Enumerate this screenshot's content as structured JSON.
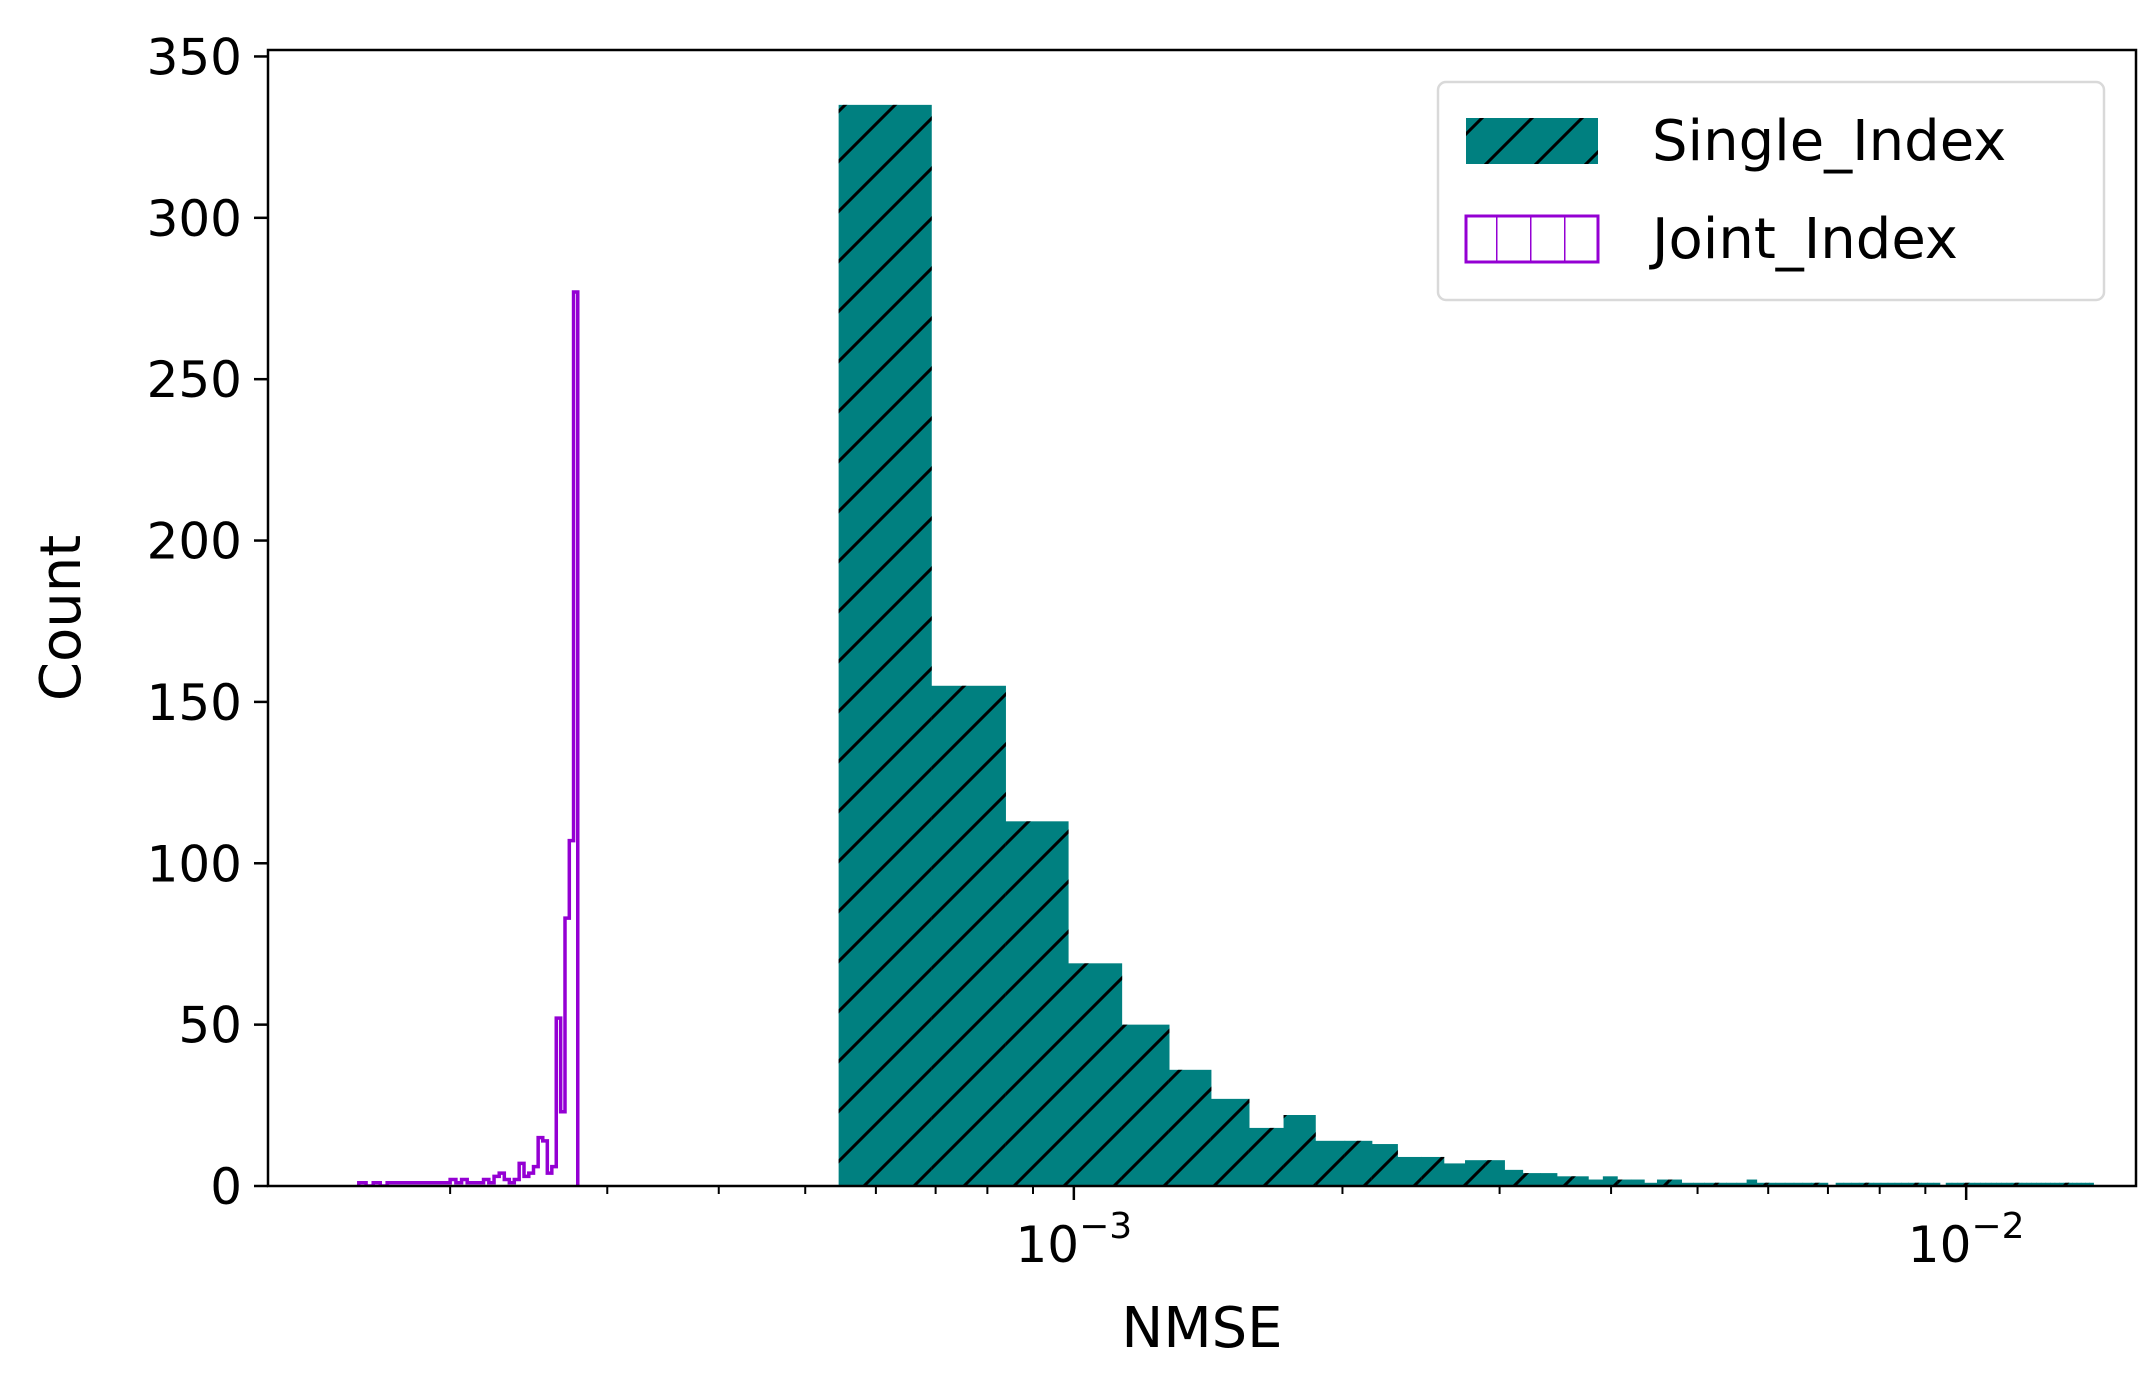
{
  "chart_data": {
    "type": "histogram",
    "xlabel": "NMSE",
    "ylabel": "Count",
    "xscale": "log",
    "xlim": [
      0.000125,
      0.0155
    ],
    "ylim": [
      0,
      352
    ],
    "yticks": [
      0,
      50,
      100,
      150,
      200,
      250,
      300,
      350
    ],
    "xticks": [
      {
        "value": 0.001,
        "base": "10",
        "exp": "−3"
      },
      {
        "value": 0.01,
        "base": "10",
        "exp": "−2"
      }
    ],
    "legend_position": "top-right",
    "series": [
      {
        "name": "Single_Index",
        "style": "filled-hatched",
        "color": "#008080",
        "hatch": "/",
        "bin_edges": [
          0.000545,
          0.000692,
          0.000838,
          0.000985,
          0.001131,
          0.001278,
          0.001424,
          0.001571,
          0.001718,
          0.001864,
          0.002011,
          0.002157,
          0.002304,
          0.002451,
          0.002597,
          0.002744,
          0.00289,
          0.003037,
          0.003183,
          0.00333,
          0.003477,
          0.003623,
          0.00377,
          0.003916,
          0.004063,
          0.00421,
          0.004356,
          0.004503,
          0.004649,
          0.004796,
          0.004942,
          0.005089,
          0.005236,
          0.005382,
          0.005529,
          0.005675,
          0.005822,
          0.005969,
          0.006115,
          0.006262,
          0.006408,
          0.006555,
          0.006701,
          0.006848,
          0.006995,
          0.007141,
          0.007288,
          0.007434,
          0.007581,
          0.007728,
          0.007874,
          0.008021,
          0.008167,
          0.008314,
          0.00846,
          0.008607,
          0.008754,
          0.0089,
          0.009047,
          0.009193,
          0.00934,
          0.009487,
          0.009633,
          0.00978,
          0.009926,
          0.010073,
          0.010219,
          0.010366,
          0.010513,
          0.010659,
          0.010806,
          0.010952,
          0.011099,
          0.011246,
          0.011392,
          0.011539,
          0.011685,
          0.011832,
          0.011978,
          0.012125,
          0.012272,
          0.012418,
          0.012565,
          0.012711,
          0.012858,
          0.013005,
          0.013151,
          0.013298,
          0.013444,
          0.013591,
          0.013737,
          0.013884
        ],
        "counts": [
          335,
          155,
          113,
          69,
          50,
          36,
          27,
          18,
          22,
          14,
          14,
          13,
          9,
          9,
          7,
          8,
          8,
          5,
          4,
          4,
          3,
          3,
          2,
          3,
          2,
          2,
          1,
          2,
          2,
          1,
          1,
          1,
          1,
          1,
          1,
          2,
          1,
          1,
          1,
          1,
          1,
          1,
          1,
          1,
          0,
          1,
          1,
          1,
          1,
          1,
          1,
          1,
          1,
          1,
          1,
          1,
          1,
          1,
          1,
          1,
          0,
          1,
          1,
          1,
          1,
          1,
          1,
          1,
          1,
          1,
          1,
          1,
          1,
          1,
          1,
          1,
          1,
          1,
          1,
          1,
          1,
          1,
          1,
          1,
          1,
          1,
          1,
          1,
          1,
          1,
          1
        ]
      },
      {
        "name": "Joint_Index",
        "style": "step-outline",
        "color": "#9400d3",
        "hatch": "|",
        "bin_edges": [
          0.000158,
          0.000161,
          0.000164,
          0.000167,
          0.00017,
          0.000173,
          0.000176,
          0.000179,
          0.000182,
          0.000185,
          0.000188,
          0.000191,
          0.000194,
          0.000197,
          0.0002,
          0.000203,
          0.000206,
          0.000209,
          0.000212,
          0.000215,
          0.000218,
          0.000221,
          0.000224,
          0.000227,
          0.00023,
          0.000233,
          0.000236,
          0.000239,
          0.000242,
          0.000245,
          0.000248,
          0.000251,
          0.000254,
          0.000257,
          0.00026,
          0.000263,
          0.000266,
          0.000269,
          0.000272,
          0.000275,
          0.000278
        ],
        "counts": [
          1,
          0,
          1,
          0,
          1,
          1,
          1,
          1,
          1,
          1,
          1,
          1,
          1,
          1,
          2,
          1,
          2,
          1,
          1,
          1,
          2,
          1,
          3,
          4,
          2,
          1,
          2,
          7,
          3,
          4,
          6,
          15,
          14,
          4,
          6,
          52,
          23,
          83,
          107,
          277
        ]
      }
    ]
  }
}
